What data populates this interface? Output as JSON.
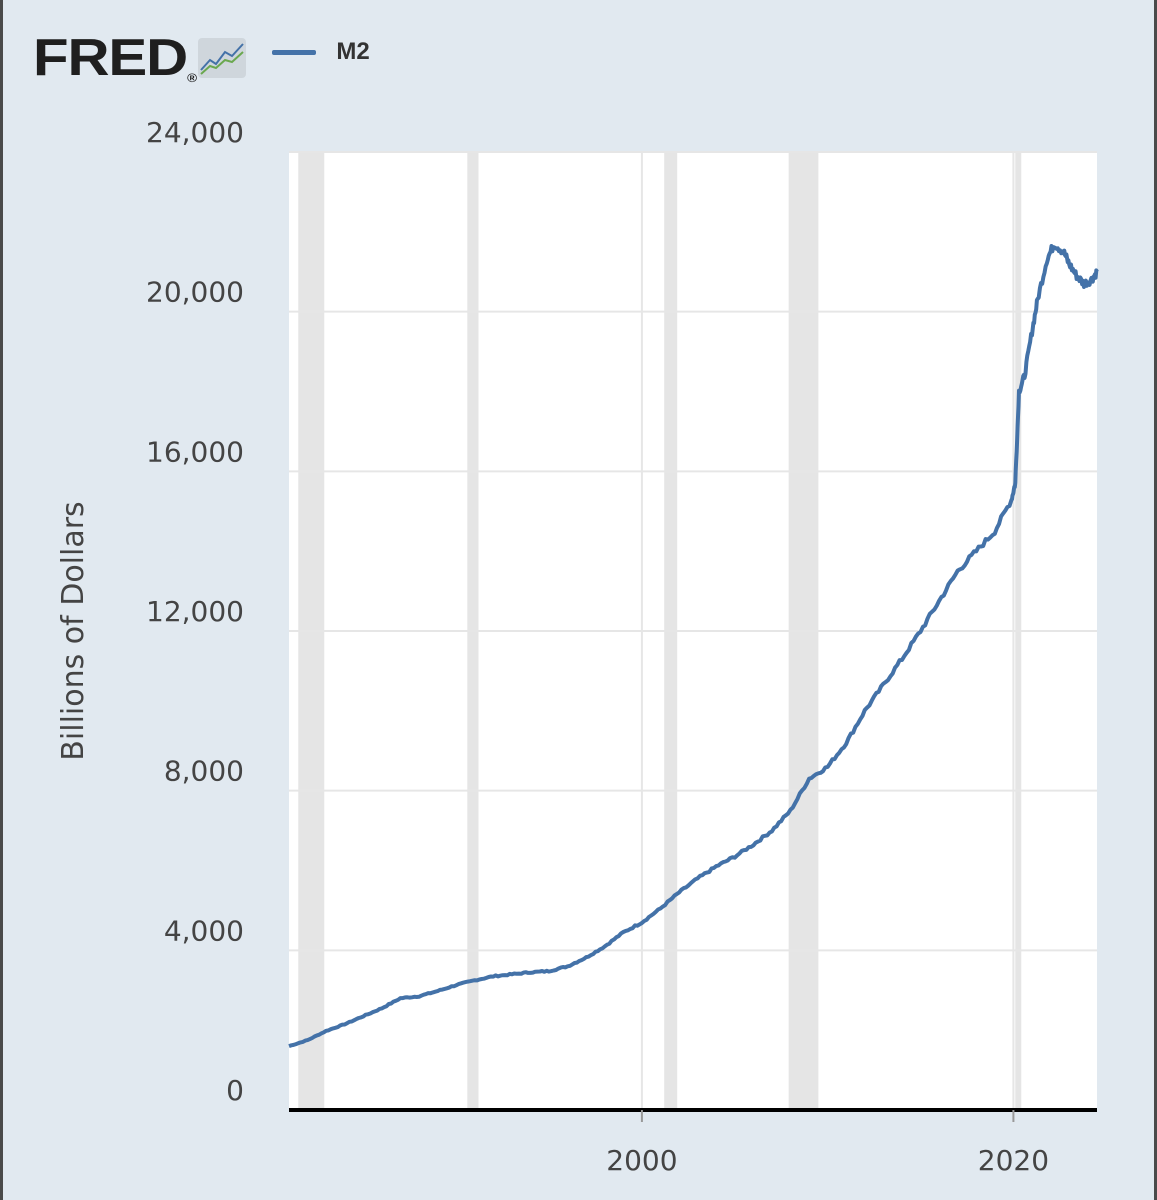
{
  "header": {
    "logo_text": "FRED",
    "logo_mark": "®"
  },
  "chart_data": {
    "type": "line",
    "title": "",
    "xlabel": "",
    "ylabel": "Billions of Dollars",
    "x_range": [
      1981,
      2024.5
    ],
    "ylim": [
      0,
      24000
    ],
    "y_ticks": [
      {
        "value": 0,
        "label": "0"
      },
      {
        "value": 4000,
        "label": "4,000"
      },
      {
        "value": 8000,
        "label": "8,000"
      },
      {
        "value": 12000,
        "label": "12,000"
      },
      {
        "value": 16000,
        "label": "16,000"
      },
      {
        "value": 20000,
        "label": "20,000"
      },
      {
        "value": 24000,
        "label": "24,000"
      }
    ],
    "x_ticks": [
      {
        "value": 2000,
        "label": "2000"
      },
      {
        "value": 2020,
        "label": "2020"
      }
    ],
    "recessions": [
      [
        1981.5,
        1982.9
      ],
      [
        1990.6,
        1991.2
      ],
      [
        2001.2,
        2001.9
      ],
      [
        2007.9,
        2009.5
      ],
      [
        2020.1,
        2020.35
      ]
    ],
    "legend_position": "top-left",
    "series": [
      {
        "name": "M2",
        "color": "#4472a8",
        "points": [
          [
            1981.0,
            1600
          ],
          [
            1982.0,
            1750
          ],
          [
            1983.0,
            1980
          ],
          [
            1984.0,
            2150
          ],
          [
            1985.0,
            2350
          ],
          [
            1986.0,
            2550
          ],
          [
            1987.0,
            2800
          ],
          [
            1988.0,
            2850
          ],
          [
            1989.0,
            2980
          ],
          [
            1990.0,
            3130
          ],
          [
            1991.0,
            3250
          ],
          [
            1992.0,
            3350
          ],
          [
            1993.0,
            3400
          ],
          [
            1994.0,
            3450
          ],
          [
            1995.0,
            3480
          ],
          [
            1996.0,
            3600
          ],
          [
            1997.0,
            3820
          ],
          [
            1998.0,
            4100
          ],
          [
            1999.0,
            4450
          ],
          [
            2000.0,
            4700
          ],
          [
            2001.0,
            5050
          ],
          [
            2002.0,
            5450
          ],
          [
            2003.0,
            5800
          ],
          [
            2004.0,
            6100
          ],
          [
            2005.0,
            6350
          ],
          [
            2006.0,
            6650
          ],
          [
            2007.0,
            7000
          ],
          [
            2008.0,
            7500
          ],
          [
            2009.0,
            8300
          ],
          [
            2010.0,
            8600
          ],
          [
            2011.0,
            9200
          ],
          [
            2012.0,
            10000
          ],
          [
            2013.0,
            10650
          ],
          [
            2014.0,
            11300
          ],
          [
            2015.0,
            12000
          ],
          [
            2016.0,
            12750
          ],
          [
            2017.0,
            13500
          ],
          [
            2018.0,
            14000
          ],
          [
            2019.0,
            14500
          ],
          [
            2019.9,
            15300
          ],
          [
            2020.1,
            15700
          ],
          [
            2020.3,
            18000
          ],
          [
            2020.6,
            18400
          ],
          [
            2021.0,
            19500
          ],
          [
            2021.3,
            20300
          ],
          [
            2021.8,
            21300
          ],
          [
            2022.2,
            21700
          ],
          [
            2022.7,
            21500
          ],
          [
            2023.0,
            21200
          ],
          [
            2023.4,
            20900
          ],
          [
            2023.8,
            20700
          ],
          [
            2024.2,
            20800
          ],
          [
            2024.5,
            21000
          ]
        ]
      }
    ]
  }
}
